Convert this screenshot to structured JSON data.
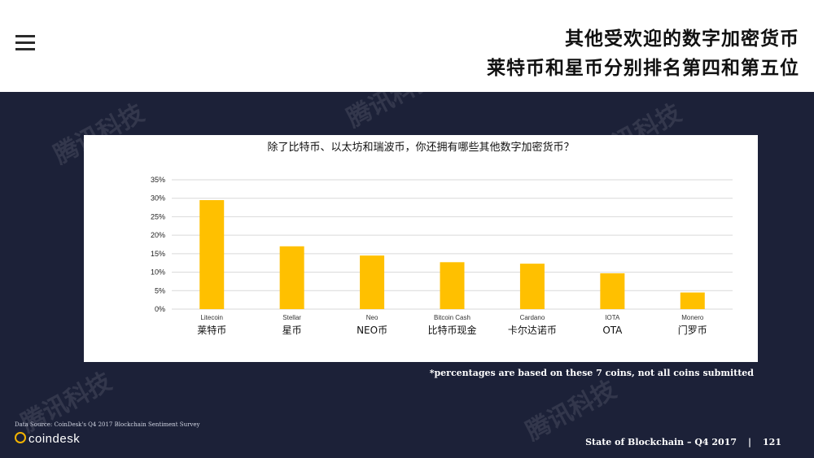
{
  "header": {
    "title_line1": "其他受欢迎的数字加密货币",
    "title_line2": "莱特币和星币分别排名第四和第五位",
    "menu_icon": "hamburger-icon"
  },
  "watermark": "腾讯科技",
  "chart_data": {
    "type": "bar",
    "title": "除了比特币、以太坊和瑞波币，你还拥有哪些其他数字加密货币？",
    "categories": [
      "Litecoin",
      "Stellar",
      "Neo",
      "Bitcoin Cash",
      "Cardano",
      "IOTA",
      "Monero"
    ],
    "categories_zh": [
      "莱特币",
      "星币",
      "NEO币",
      "比特币现金",
      "卡尔达诺币",
      "OTA",
      "门罗币"
    ],
    "values": [
      29.5,
      17,
      14.5,
      12.7,
      12.3,
      9.7,
      4.5
    ],
    "ylim": [
      0,
      35
    ],
    "yticks": [
      0,
      5,
      10,
      15,
      20,
      25,
      30,
      35
    ],
    "ytick_labels": [
      "0%",
      "5%",
      "10%",
      "15%",
      "20%",
      "25%",
      "30%",
      "35%"
    ],
    "xlabel": "",
    "ylabel": "",
    "grid": true,
    "bar_color": "#ffc000"
  },
  "footnote": "*percentages are based on these 7 coins, not all coins submitted",
  "footer": {
    "source": "Data Source: CoinDesk's Q4 2017 Blockchain Sentiment Survey",
    "logo": "coindesk",
    "report": "State of Blockchain – Q4 2017",
    "separator": "|",
    "page": "121"
  }
}
